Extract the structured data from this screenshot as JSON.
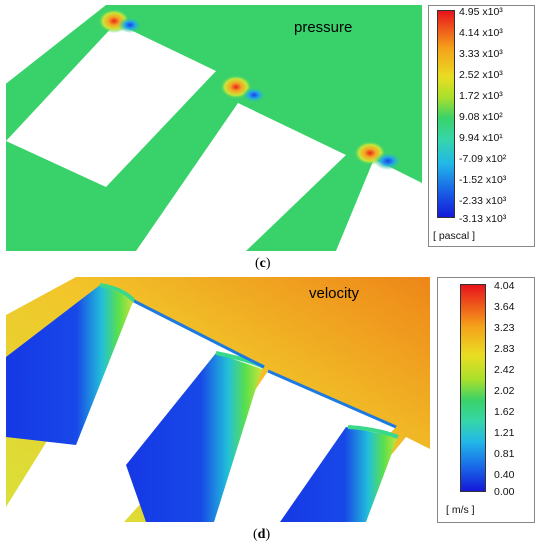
{
  "panel_c": {
    "field_label": "pressure",
    "legend_ticks": [
      "4.95 x10³",
      "4.14 x10³",
      "3.33 x10³",
      "2.52 x10³",
      "1.72 x10³",
      "9.08 x10²",
      "9.94 x10¹",
      "-7.09 x10²",
      "-1.52 x10³",
      "-2.33 x10³",
      "-3.13 x10³"
    ],
    "legend_unit": "[ pascal ]",
    "caption_letter": "c",
    "colors": {
      "field": "#39d26a"
    }
  },
  "panel_d": {
    "field_label": "velocity",
    "legend_ticks": [
      "4.04",
      "3.64",
      "3.23",
      "2.83",
      "2.42",
      "2.02",
      "1.62",
      "1.21",
      "0.81",
      "0.40",
      "0.00"
    ],
    "legend_unit": "[ m/s ]",
    "caption_letter": "d",
    "colors": {
      "field_low": "#e8d634",
      "field_high": "#f08a1c",
      "slow_core": "#1538e6"
    }
  }
}
